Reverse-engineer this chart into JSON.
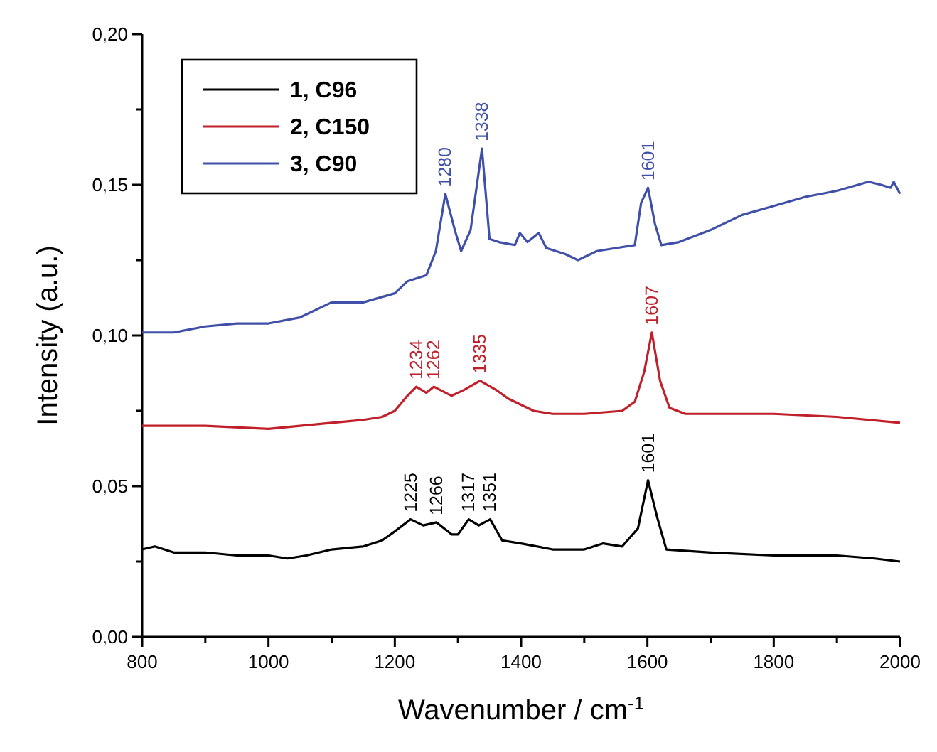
{
  "chart_data": {
    "type": "line",
    "xlabel": "Wavenumber / cm$^{-1}$",
    "ylabel": "Intensity (a.u.)",
    "xlim": [
      800,
      2000
    ],
    "ylim": [
      0,
      0.2
    ],
    "xticks": [
      800,
      {
        "value": 900,
        "label": null
      },
      1000,
      {
        "value": 1100,
        "label": null
      },
      1200,
      {
        "value": 1300,
        "label": null
      },
      1400,
      {
        "value": 1500,
        "label": null
      },
      1600,
      {
        "value": 1700,
        "label": null
      },
      1800,
      {
        "value": 1900,
        "label": null
      },
      2000
    ],
    "yticks": [
      {
        "value": 0,
        "label": "0,00"
      },
      {
        "value": 0.025,
        "label": null
      },
      {
        "value": 0.05,
        "label": "0,05"
      },
      {
        "value": 0.075,
        "label": null
      },
      {
        "value": 0.1,
        "label": "0,10"
      },
      {
        "value": 0.125,
        "label": null
      },
      {
        "value": 0.15,
        "label": "0,15"
      },
      {
        "value": 0.175,
        "label": null
      },
      {
        "value": 0.2,
        "label": "0,20"
      }
    ],
    "legend": "top left",
    "grid": false,
    "marker": "none",
    "line_style": "solid",
    "series": [
      {
        "name": "1, C96",
        "color": "#000000",
        "x": [
          800,
          820,
          850,
          900,
          950,
          1000,
          1030,
          1060,
          1100,
          1150,
          1180,
          1200,
          1225,
          1245,
          1266,
          1290,
          1300,
          1317,
          1333,
          1351,
          1370,
          1400,
          1450,
          1500,
          1530,
          1560,
          1585,
          1601,
          1615,
          1630,
          1700,
          1800,
          1900,
          1960,
          2000
        ],
        "values": [
          0.029,
          0.03,
          0.028,
          0.028,
          0.027,
          0.027,
          0.026,
          0.027,
          0.029,
          0.03,
          0.032,
          0.035,
          0.039,
          0.037,
          0.038,
          0.034,
          0.034,
          0.039,
          0.037,
          0.039,
          0.032,
          0.031,
          0.029,
          0.029,
          0.031,
          0.03,
          0.036,
          0.052,
          0.04,
          0.029,
          0.028,
          0.027,
          0.027,
          0.026,
          0.025
        ]
      },
      {
        "name": "2, C150",
        "color": "#c0202a",
        "x": [
          800,
          900,
          1000,
          1050,
          1100,
          1150,
          1180,
          1200,
          1220,
          1234,
          1250,
          1262,
          1290,
          1310,
          1335,
          1360,
          1380,
          1420,
          1450,
          1500,
          1560,
          1580,
          1595,
          1607,
          1620,
          1635,
          1660,
          1700,
          1800,
          1900,
          2000
        ],
        "values": [
          0.07,
          0.07,
          0.069,
          0.07,
          0.071,
          0.072,
          0.073,
          0.075,
          0.08,
          0.083,
          0.081,
          0.083,
          0.08,
          0.082,
          0.085,
          0.082,
          0.079,
          0.075,
          0.074,
          0.074,
          0.075,
          0.078,
          0.088,
          0.101,
          0.085,
          0.076,
          0.074,
          0.074,
          0.074,
          0.073,
          0.071
        ]
      },
      {
        "name": "3, C90",
        "color": "#4050a8",
        "x": [
          800,
          850,
          900,
          950,
          1000,
          1050,
          1100,
          1150,
          1200,
          1220,
          1250,
          1265,
          1280,
          1295,
          1305,
          1320,
          1338,
          1350,
          1365,
          1390,
          1398,
          1410,
          1428,
          1440,
          1470,
          1490,
          1520,
          1550,
          1580,
          1590,
          1601,
          1612,
          1622,
          1650,
          1700,
          1750,
          1800,
          1850,
          1900,
          1950,
          1970,
          1985,
          1990,
          2000
        ],
        "values": [
          0.101,
          0.101,
          0.103,
          0.104,
          0.104,
          0.106,
          0.111,
          0.111,
          0.114,
          0.118,
          0.12,
          0.128,
          0.147,
          0.135,
          0.128,
          0.135,
          0.162,
          0.132,
          0.131,
          0.13,
          0.134,
          0.131,
          0.134,
          0.129,
          0.127,
          0.125,
          0.128,
          0.129,
          0.13,
          0.144,
          0.149,
          0.137,
          0.13,
          0.131,
          0.135,
          0.14,
          0.143,
          0.146,
          0.148,
          0.151,
          0.15,
          0.149,
          0.151,
          0.147
        ]
      }
    ],
    "annotations": [
      {
        "text": "1280",
        "x": 1280,
        "y": 0.147
      },
      {
        "text": "1338",
        "x": 1338,
        "y": 0.162
      },
      {
        "text": "1601",
        "x": 1601,
        "y": 0.149
      },
      {
        "text": "1234",
        "x": 1234,
        "y": 0.083
      },
      {
        "text": "1262",
        "x": 1262,
        "y": 0.083
      },
      {
        "text": "1335",
        "x": 1335,
        "y": 0.085
      },
      {
        "text": "1607",
        "x": 1607,
        "y": 0.101
      },
      {
        "text": "1225",
        "x": 1225,
        "y": 0.039
      },
      {
        "text": "1266",
        "x": 1266,
        "y": 0.038
      },
      {
        "text": "1317",
        "x": 1317,
        "y": 0.039
      },
      {
        "text": "1351",
        "x": 1351,
        "y": 0.039
      },
      {
        "text": "1601",
        "x": 1601,
        "y": 0.052
      }
    ]
  }
}
